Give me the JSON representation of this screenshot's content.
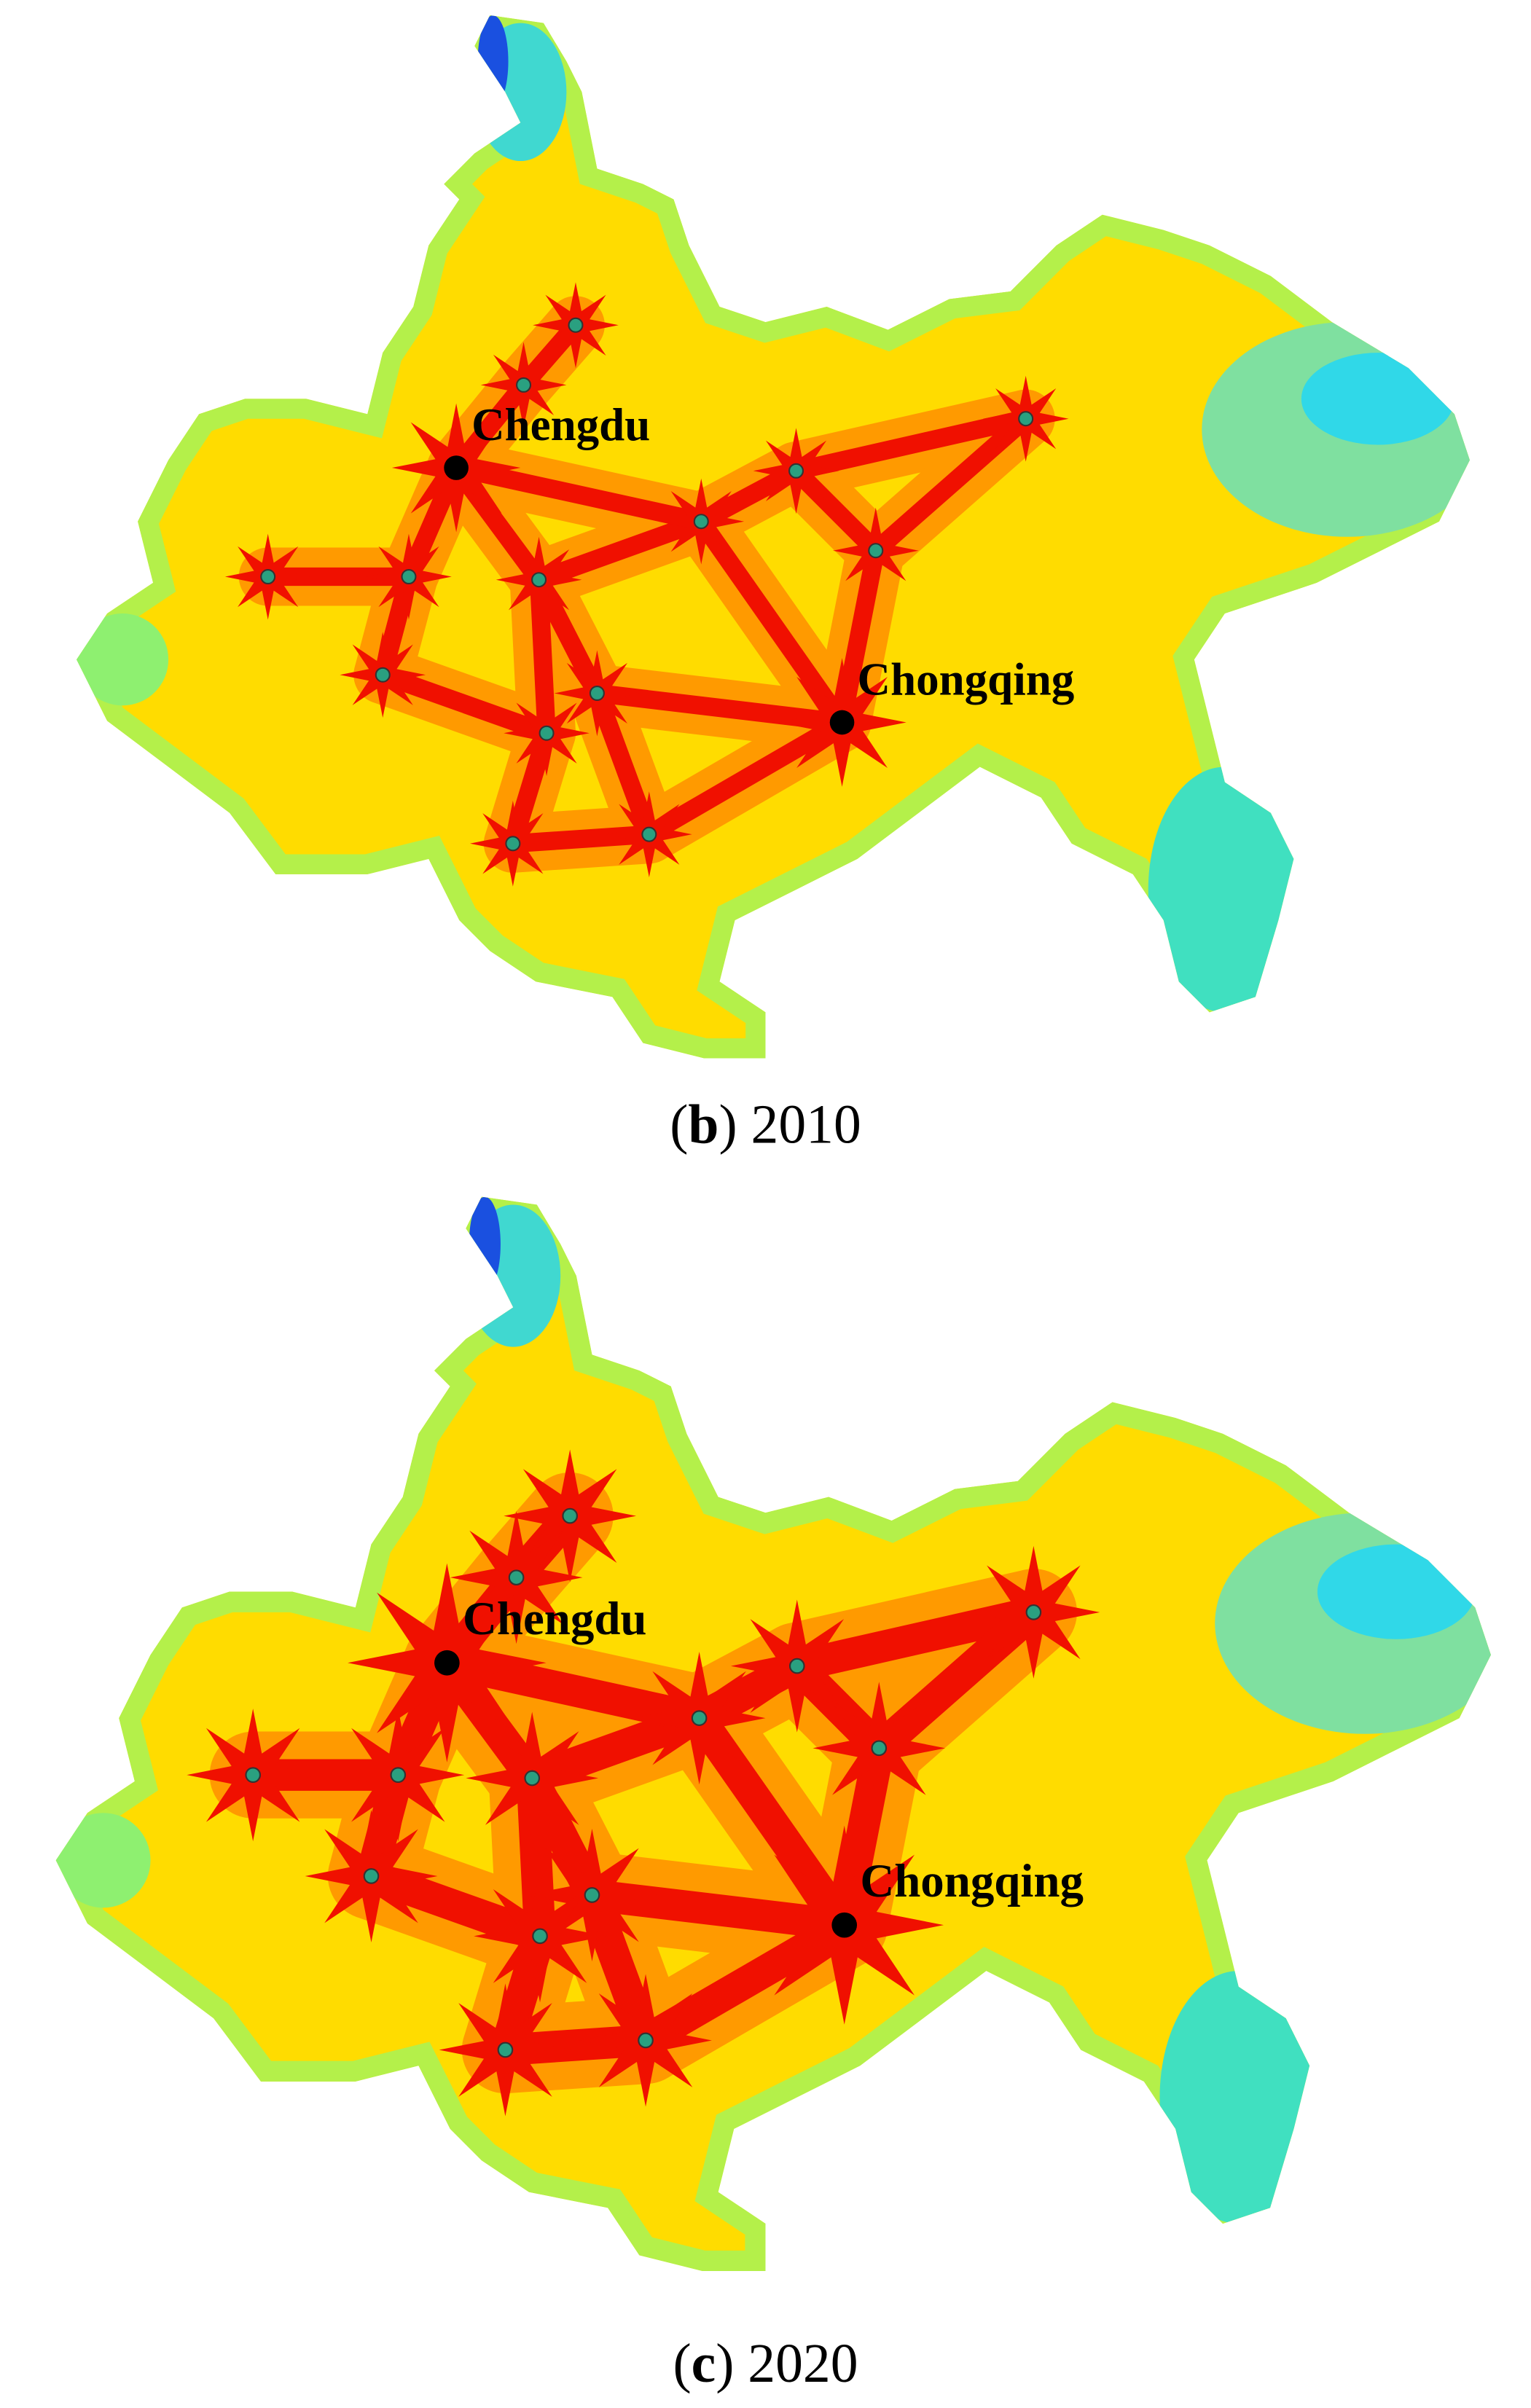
{
  "panels": [
    {
      "caption": [
        "(",
        "b",
        ") 2010"
      ],
      "cities": [
        "Chengdu",
        "Chongqing"
      ]
    },
    {
      "caption": [
        "(",
        "c",
        ") 2020"
      ],
      "cities": [
        "Chengdu",
        "Chongqing"
      ]
    }
  ]
}
